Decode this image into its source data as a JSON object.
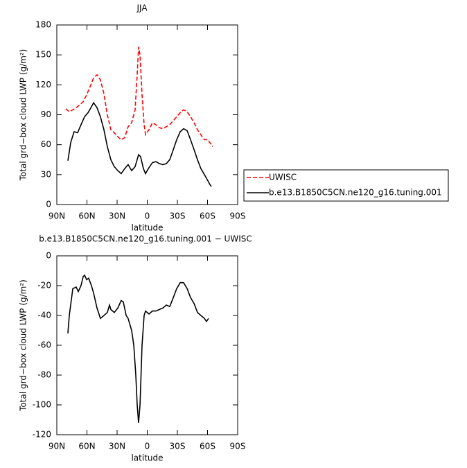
{
  "chart_data": [
    {
      "type": "line",
      "title": "JJA",
      "xlabel": "latitude",
      "ylabel": "Total grd−box cloud LWP (g/m²)",
      "xlim": [
        90,
        -90
      ],
      "xticks": [
        {
          "value": 90,
          "label": "90N"
        },
        {
          "value": 60,
          "label": "60N"
        },
        {
          "value": 30,
          "label": "30N"
        },
        0,
        {
          "value": -30,
          "label": "30S"
        },
        {
          "value": -60,
          "label": "60S"
        },
        {
          "value": -90,
          "label": "90S"
        }
      ],
      "ylim": [
        0,
        180
      ],
      "yticks": [
        0,
        30,
        60,
        90,
        120,
        150,
        180
      ],
      "legend": "right",
      "series": [
        {
          "name": "UWISC",
          "color": "#ff0000",
          "line_style": "dashed",
          "x": [
            81,
            77.6,
            74.1,
            70.7,
            67.2,
            63.8,
            60.3,
            56.9,
            53.4,
            50,
            46.6,
            43.1,
            39.7,
            36.2,
            32.8,
            29.3,
            25.9,
            22.4,
            19,
            15.5,
            12.1,
            10,
            8.6,
            7.2,
            5.2,
            3.1,
            1.7,
            -1.7,
            -5.2,
            -8.6,
            -12.1,
            -15.5,
            -19,
            -22.4,
            -25.9,
            -29.3,
            -32.8,
            -36.2,
            -39.7,
            -43.1,
            -46.6,
            -50,
            -53.4,
            -56.9,
            -60.3,
            -63.8,
            -65.2
          ],
          "values": [
            96,
            93,
            95,
            97,
            100,
            103,
            110,
            118,
            127,
            130,
            125,
            111,
            90,
            75,
            72,
            68,
            65,
            67,
            78,
            82,
            95,
            130,
            158,
            150,
            110,
            80,
            70,
            75,
            82,
            80,
            77,
            76,
            78,
            80,
            84,
            88,
            92,
            95,
            93,
            88,
            82,
            75,
            70,
            65,
            65,
            60,
            58
          ]
        },
        {
          "name": "b.e13.B1850C5CN.ne120_g16.tuning.001",
          "color": "#000000",
          "line_style": "solid",
          "x": [
            79,
            76.2,
            72.8,
            69.3,
            65.9,
            62.4,
            59,
            55.5,
            53.4,
            50,
            46.6,
            43.1,
            39.7,
            36.2,
            32.8,
            29.3,
            25.9,
            22.4,
            19,
            15.5,
            12.1,
            8.6,
            6.6,
            3.8,
            1.7,
            -1.7,
            -5.2,
            -8.6,
            -12.1,
            -15.5,
            -19,
            -22.4,
            -25.9,
            -29.3,
            -32.8,
            -36.2,
            -39.7,
            -43.1,
            -46.6,
            -50,
            -53.4,
            -56.9,
            -60.3,
            -62.4,
            -63.8
          ],
          "values": [
            44,
            62,
            73,
            72,
            80,
            88,
            92,
            98,
            102,
            97,
            88,
            75,
            58,
            45,
            38,
            34,
            31,
            36,
            40,
            34,
            38,
            50,
            48,
            36,
            31,
            37,
            42,
            43,
            41,
            40,
            41,
            45,
            55,
            65,
            73,
            76,
            74,
            65,
            55,
            45,
            36,
            30,
            24,
            20,
            18
          ]
        }
      ]
    },
    {
      "type": "line",
      "title": "b.e13.B1850C5CN.ne120_g16.tuning.001 − UWISC",
      "xlabel": "latitude",
      "ylabel": "Total grd−box cloud LWP (g/m²)",
      "xlim": [
        90,
        -90
      ],
      "xticks": [
        {
          "value": 90,
          "label": "90N"
        },
        {
          "value": 60,
          "label": "60N"
        },
        {
          "value": 30,
          "label": "30N"
        },
        0,
        {
          "value": -30,
          "label": "30S"
        },
        {
          "value": -60,
          "label": "60S"
        },
        {
          "value": -90,
          "label": "90S"
        }
      ],
      "ylim": [
        -120,
        0
      ],
      "yticks": [
        -120,
        -100,
        -80,
        -60,
        -40,
        -20,
        0
      ],
      "series": [
        {
          "color": "#000000",
          "line_style": "solid",
          "x": [
            79,
            77.6,
            74.1,
            70.7,
            68.6,
            65.9,
            63.8,
            62.4,
            60.3,
            58.3,
            55.5,
            53.4,
            50,
            46.6,
            43.1,
            39.7,
            37.6,
            36.2,
            32.8,
            29.3,
            25.9,
            23.8,
            21,
            19,
            15.5,
            13.4,
            11.4,
            10,
            8.6,
            7.2,
            5.2,
            3.1,
            1.7,
            -1.7,
            -5.2,
            -8.6,
            -12.1,
            -15.5,
            -19,
            -22.4,
            -25.9,
            -29.3,
            -32.8,
            -36.2,
            -39.7,
            -43.1,
            -46.6,
            -50,
            -53.4,
            -56.9,
            -59,
            -61
          ],
          "values": [
            -52,
            -40,
            -22,
            -21,
            -24,
            -20,
            -14,
            -13,
            -16,
            -15,
            -20,
            -25,
            -35,
            -42,
            -40,
            -38,
            -33,
            -36,
            -38,
            -35,
            -30,
            -31,
            -40,
            -42,
            -50,
            -60,
            -80,
            -100,
            -112,
            -100,
            -60,
            -40,
            -37,
            -39,
            -37,
            -37,
            -36,
            -35,
            -33,
            -34,
            -28,
            -22,
            -18,
            -18,
            -22,
            -28,
            -32,
            -38,
            -40,
            -42,
            -44,
            -42
          ]
        }
      ]
    }
  ]
}
